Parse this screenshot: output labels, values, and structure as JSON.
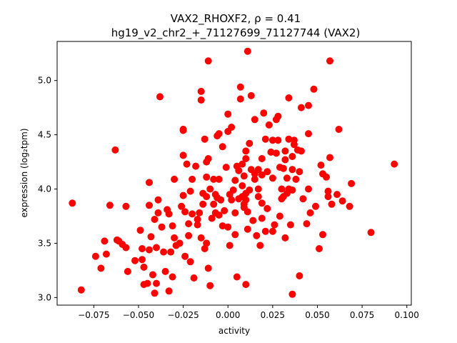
{
  "chart_data": {
    "type": "scatter",
    "title_line1": "VAX2_RHOXF2, ρ = 0.41",
    "title_line2": "hg19_v2_chr2_+_71127699_71127744 (VAX2)",
    "xlabel": "activity",
    "ylabel": "expression (log₂tpm)",
    "xlim": [
      -0.0955,
      0.1025
    ],
    "ylim": [
      2.93,
      5.36
    ],
    "grid": false,
    "marker_color": "#ff0000",
    "xticks": [
      {
        "value": -0.075,
        "label": "−0.075"
      },
      {
        "value": -0.05,
        "label": "−0.050"
      },
      {
        "value": -0.025,
        "label": "−0.025"
      },
      {
        "value": 0.0,
        "label": "0.000"
      },
      {
        "value": 0.025,
        "label": "0.025"
      },
      {
        "value": 0.05,
        "label": "0.050"
      },
      {
        "value": 0.075,
        "label": "0.075"
      },
      {
        "value": 0.1,
        "label": "0.100"
      }
    ],
    "yticks": [
      {
        "value": 3.0,
        "label": "3.0"
      },
      {
        "value": 3.5,
        "label": "3.5"
      },
      {
        "value": 4.0,
        "label": "4.0"
      },
      {
        "value": 4.5,
        "label": "4.5"
      },
      {
        "value": 5.0,
        "label": "5.0"
      }
    ],
    "points": [
      [
        -0.087,
        3.87
      ],
      [
        -0.082,
        3.07
      ],
      [
        -0.074,
        3.38
      ],
      [
        -0.071,
        3.27
      ],
      [
        -0.069,
        3.52
      ],
      [
        -0.068,
        3.4
      ],
      [
        -0.066,
        3.85
      ],
      [
        -0.063,
        4.36
      ],
      [
        -0.062,
        3.53
      ],
      [
        -0.061,
        3.52
      ],
      [
        -0.059,
        3.49
      ],
      [
        -0.057,
        3.84
      ],
      [
        -0.057,
        3.46
      ],
      [
        -0.056,
        3.24
      ],
      [
        -0.052,
        3.34
      ],
      [
        -0.049,
        3.62
      ],
      [
        -0.048,
        3.45
      ],
      [
        -0.048,
        3.35
      ],
      [
        -0.047,
        3.28
      ],
      [
        -0.047,
        3.12
      ],
      [
        -0.045,
        3.13
      ],
      [
        -0.044,
        4.06
      ],
      [
        -0.044,
        3.85
      ],
      [
        -0.044,
        3.44
      ],
      [
        -0.043,
        3.56
      ],
      [
        -0.042,
        3.21
      ],
      [
        -0.041,
        3.72
      ],
      [
        -0.041,
        3.04
      ],
      [
        -0.04,
        3.46
      ],
      [
        -0.04,
        3.13
      ],
      [
        -0.039,
        3.78
      ],
      [
        -0.039,
        3.9
      ],
      [
        -0.038,
        4.85
      ],
      [
        -0.037,
        3.65
      ],
      [
        -0.036,
        3.42
      ],
      [
        -0.035,
        3.24
      ],
      [
        -0.034,
        3.81
      ],
      [
        -0.033,
        3.77
      ],
      [
        -0.033,
        3.06
      ],
      [
        -0.032,
        3.42
      ],
      [
        -0.031,
        3.66
      ],
      [
        -0.031,
        3.19
      ],
      [
        -0.03,
        3.55
      ],
      [
        -0.03,
        4.09
      ],
      [
        -0.029,
        3.48
      ],
      [
        -0.027,
        3.5
      ],
      [
        -0.026,
        3.84
      ],
      [
        -0.025,
        4.54
      ],
      [
        -0.025,
        4.55
      ],
      [
        -0.025,
        4.31
      ],
      [
        -0.025,
        3.94
      ],
      [
        -0.024,
        3.79
      ],
      [
        -0.024,
        3.38
      ],
      [
        -0.023,
        4.23
      ],
      [
        -0.022,
        3.57
      ],
      [
        -0.022,
        3.68
      ],
      [
        -0.021,
        3.33
      ],
      [
        -0.021,
        3.98
      ],
      [
        -0.02,
        4.09
      ],
      [
        -0.02,
        3.77
      ],
      [
        -0.019,
        3.18
      ],
      [
        -0.018,
        4.21
      ],
      [
        -0.017,
        3.72
      ],
      [
        -0.017,
        3.67
      ],
      [
        -0.016,
        3.78
      ],
      [
        -0.015,
        3.55
      ],
      [
        -0.015,
        4.82
      ],
      [
        -0.015,
        4.9
      ],
      [
        -0.014,
        3.96
      ],
      [
        -0.014,
        3.86
      ],
      [
        -0.013,
        3.45
      ],
      [
        -0.013,
        4.46
      ],
      [
        -0.012,
        3.93
      ],
      [
        -0.012,
        3.5
      ],
      [
        -0.012,
        4.11
      ],
      [
        -0.012,
        4.25
      ],
      [
        -0.011,
        5.18
      ],
      [
        -0.011,
        4.28
      ],
      [
        -0.011,
        3.27
      ],
      [
        -0.01,
        4.0
      ],
      [
        -0.01,
        3.11
      ],
      [
        -0.009,
        3.73
      ],
      [
        -0.008,
        3.86
      ],
      [
        -0.008,
        4.09
      ],
      [
        -0.007,
        3.95
      ],
      [
        -0.007,
        3.78
      ],
      [
        -0.006,
        4.49
      ],
      [
        -0.006,
        3.92
      ],
      [
        -0.005,
        4.51
      ],
      [
        -0.005,
        4.09
      ],
      [
        -0.005,
        3.76
      ],
      [
        -0.004,
        3.9
      ],
      [
        -0.003,
        4.39
      ],
      [
        -0.003,
        3.66
      ],
      [
        -0.002,
        3.8
      ],
      [
        -0.001,
        4.2
      ],
      [
        0.0,
        3.65
      ],
      [
        0.0,
        4.69
      ],
      [
        0.0,
        4.53
      ],
      [
        0.001,
        3.95
      ],
      [
        0.001,
        3.48
      ],
      [
        0.002,
        4.57
      ],
      [
        0.002,
        3.9
      ],
      [
        0.003,
        3.99
      ],
      [
        0.004,
        3.58
      ],
      [
        0.004,
        4.08
      ],
      [
        0.004,
        3.78
      ],
      [
        0.005,
        3.19
      ],
      [
        0.005,
        4.21
      ],
      [
        0.006,
        4.17
      ],
      [
        0.006,
        3.91
      ],
      [
        0.007,
        4.83
      ],
      [
        0.007,
        4.94
      ],
      [
        0.008,
        3.93
      ],
      [
        0.008,
        4.23
      ],
      [
        0.008,
        4.03
      ],
      [
        0.009,
        3.86
      ],
      [
        0.009,
        3.83
      ],
      [
        0.009,
        4.12
      ],
      [
        0.01,
        3.9
      ],
      [
        0.01,
        4.35
      ],
      [
        0.01,
        3.96
      ],
      [
        0.01,
        4.28
      ],
      [
        0.01,
        3.12
      ],
      [
        0.011,
        5.27
      ],
      [
        0.011,
        3.79
      ],
      [
        0.011,
        3.63
      ],
      [
        0.012,
        3.99
      ],
      [
        0.012,
        4.42
      ],
      [
        0.013,
        4.18
      ],
      [
        0.013,
        4.86
      ],
      [
        0.014,
        3.71
      ],
      [
        0.015,
        4.09
      ],
      [
        0.015,
        4.14
      ],
      [
        0.015,
        4.64
      ],
      [
        0.016,
        3.57
      ],
      [
        0.017,
        4.18
      ],
      [
        0.017,
        4.0
      ],
      [
        0.017,
        3.93
      ],
      [
        0.018,
        3.48
      ],
      [
        0.019,
        4.28
      ],
      [
        0.019,
        4.13
      ],
      [
        0.019,
        3.73
      ],
      [
        0.019,
        3.87
      ],
      [
        0.02,
        4.7
      ],
      [
        0.021,
        3.61
      ],
      [
        0.021,
        4.46
      ],
      [
        0.022,
        3.82
      ],
      [
        0.022,
        4.16
      ],
      [
        0.023,
        4.59
      ],
      [
        0.024,
        4.34
      ],
      [
        0.025,
        4.45
      ],
      [
        0.025,
        3.61
      ],
      [
        0.025,
        4.1
      ],
      [
        0.026,
        3.67
      ],
      [
        0.027,
        4.33
      ],
      [
        0.027,
        4.64
      ],
      [
        0.028,
        4.45
      ],
      [
        0.028,
        4.67
      ],
      [
        0.029,
        3.75
      ],
      [
        0.029,
        4.2
      ],
      [
        0.03,
        3.91
      ],
      [
        0.03,
        4.0
      ],
      [
        0.031,
        4.19
      ],
      [
        0.031,
        3.93
      ],
      [
        0.032,
        4.35
      ],
      [
        0.032,
        3.55
      ],
      [
        0.032,
        4.27
      ],
      [
        0.033,
        3.96
      ],
      [
        0.033,
        4.1
      ],
      [
        0.034,
        4.84
      ],
      [
        0.034,
        4.46
      ],
      [
        0.034,
        4.0
      ],
      [
        0.035,
        3.67
      ],
      [
        0.036,
        4.3
      ],
      [
        0.036,
        4.18
      ],
      [
        0.036,
        3.99
      ],
      [
        0.036,
        3.03
      ],
      [
        0.037,
        4.41
      ],
      [
        0.037,
        4.45
      ],
      [
        0.038,
        4.09
      ],
      [
        0.039,
        4.36
      ],
      [
        0.04,
        3.2
      ],
      [
        0.04,
        4.16
      ],
      [
        0.041,
        4.75
      ],
      [
        0.041,
        4.35
      ],
      [
        0.042,
        3.91
      ],
      [
        0.044,
        3.68
      ],
      [
        0.045,
        4.77
      ],
      [
        0.045,
        4.51
      ],
      [
        0.045,
        4.0
      ],
      [
        0.046,
        3.78
      ],
      [
        0.048,
        4.92
      ],
      [
        0.049,
        3.84
      ],
      [
        0.051,
        3.45
      ],
      [
        0.052,
        4.22
      ],
      [
        0.053,
        4.14
      ],
      [
        0.053,
        3.58
      ],
      [
        0.055,
        4.11
      ],
      [
        0.056,
        3.93
      ],
      [
        0.056,
        3.98
      ],
      [
        0.057,
        5.18
      ],
      [
        0.057,
        4.29
      ],
      [
        0.058,
        3.86
      ],
      [
        0.061,
        3.95
      ],
      [
        0.062,
        4.55
      ],
      [
        0.064,
        3.89
      ],
      [
        0.068,
        3.84
      ],
      [
        0.069,
        4.05
      ],
      [
        0.08,
        3.6
      ],
      [
        0.093,
        4.23
      ]
    ]
  }
}
